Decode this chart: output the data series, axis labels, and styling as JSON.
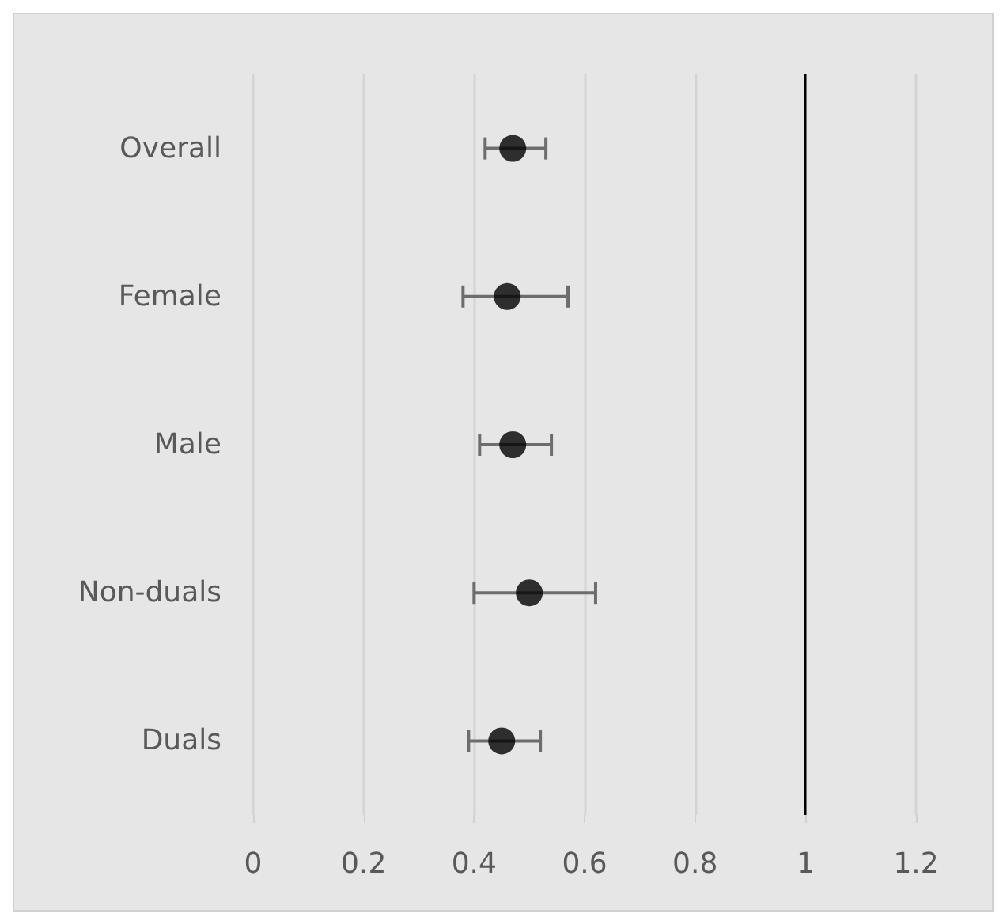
{
  "chart_data": {
    "type": "scatter",
    "orientation": "horizontal",
    "categories": [
      "Overall",
      "Female",
      "Male",
      "Non-duals",
      "Duals"
    ],
    "values": [
      0.47,
      0.46,
      0.47,
      0.5,
      0.45
    ],
    "errors": [
      [
        0.42,
        0.53
      ],
      [
        0.38,
        0.57
      ],
      [
        0.41,
        0.54
      ],
      [
        0.4,
        0.62
      ],
      [
        0.39,
        0.52
      ]
    ],
    "color": "#000000",
    "marker": "circle",
    "xlim": [
      0,
      1.2
    ],
    "xticks": [
      0,
      0.2,
      0.4,
      0.6,
      0.8,
      1,
      1.2
    ],
    "grid": "x",
    "ref_lines": [
      {
        "axis": "x",
        "value": 1,
        "color": "#000000",
        "line_style": "solid"
      }
    ]
  }
}
